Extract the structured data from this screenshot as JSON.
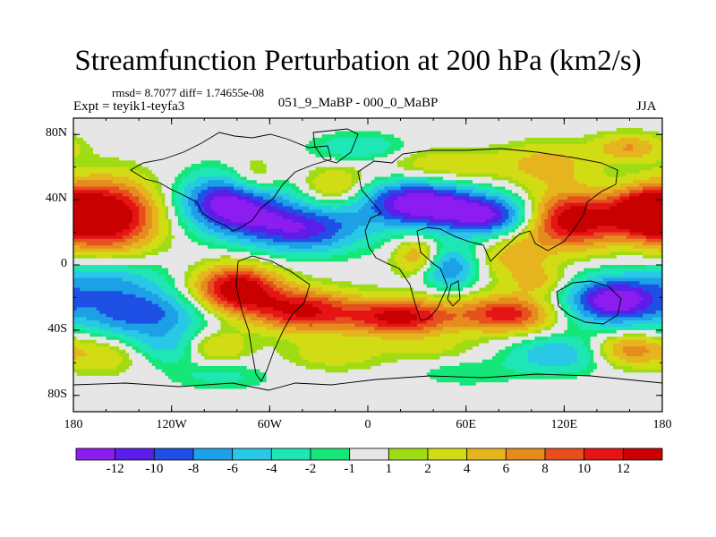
{
  "chart_data": {
    "type": "heatmap",
    "title": "Streamfunction Perturbation at 200 hPa (km2/s)",
    "stats_label": "rmsd= 8.7077 diff= 1.74655e-08",
    "left_label": "Expt = teyik1-teyfa3",
    "center_label": "051_9_MaBP - 000_0_MaBP",
    "right_label": "JJA",
    "x_axis": {
      "min": -180,
      "max": 180,
      "ticks": [
        -180,
        -120,
        -60,
        0,
        60,
        120,
        180
      ],
      "tick_labels": [
        "180",
        "120W",
        "60W",
        "0",
        "60E",
        "120E",
        "180"
      ]
    },
    "y_axis": {
      "min": -90,
      "max": 90,
      "ticks": [
        80,
        40,
        0,
        -40,
        -80
      ],
      "tick_labels": [
        "80N",
        "40N",
        "0",
        "40S",
        "80S"
      ]
    },
    "colorbar": {
      "labels": [
        "-12",
        "-10",
        "-8",
        "-6",
        "-4",
        "-2",
        "-1",
        "1",
        "2",
        "4",
        "6",
        "8",
        "10",
        "12"
      ],
      "levels": [
        -12,
        -10,
        -8,
        -6,
        -4,
        -2,
        -1,
        1,
        2,
        4,
        6,
        8,
        10,
        12
      ],
      "colors": [
        "#8c1cf0",
        "#5a1ee8",
        "#1e50e6",
        "#1ea0e6",
        "#28c8e6",
        "#1ee6b4",
        "#14e678",
        "#e6e6e6",
        "#a0dc14",
        "#d2dc14",
        "#e6b41e",
        "#e68c1e",
        "#e6501e",
        "#e61414",
        "#c80000"
      ]
    },
    "features": [
      {
        "lon": -160,
        "lat": 30,
        "amp": 16,
        "slon": 22,
        "slat": 15
      },
      {
        "lon": -70,
        "lat": 50,
        "amp": 6,
        "slon": 12,
        "slat": 10
      },
      {
        "lon": -20,
        "lat": 48,
        "amp": 5,
        "slon": 14,
        "slat": 8
      },
      {
        "lon": -82,
        "lat": 38,
        "amp": -15,
        "slon": 22,
        "slat": 12
      },
      {
        "lon": -40,
        "lat": 22,
        "amp": -11,
        "slon": 26,
        "slat": 10
      },
      {
        "lon": 30,
        "lat": 38,
        "amp": -14,
        "slon": 24,
        "slat": 10
      },
      {
        "lon": 75,
        "lat": 30,
        "amp": -12,
        "slon": 22,
        "slat": 9
      },
      {
        "lon": 45,
        "lat": 60,
        "amp": 4,
        "slon": 25,
        "slat": 8
      },
      {
        "lon": 110,
        "lat": 62,
        "amp": 5,
        "slon": 20,
        "slat": 9
      },
      {
        "lon": 160,
        "lat": 72,
        "amp": 6,
        "slon": 15,
        "slat": 6
      },
      {
        "lon": -5,
        "lat": 72,
        "amp": -4,
        "slon": 20,
        "slat": 6
      },
      {
        "lon": 125,
        "lat": 28,
        "amp": 15,
        "slon": 22,
        "slat": 12
      },
      {
        "lon": 170,
        "lat": 32,
        "amp": 14,
        "slon": 14,
        "slat": 10
      },
      {
        "lon": 90,
        "lat": 5,
        "amp": 5,
        "slon": 15,
        "slat": 10
      },
      {
        "lon": -160,
        "lat": -10,
        "amp": -6,
        "slon": 25,
        "slat": 10
      },
      {
        "lon": -140,
        "lat": -30,
        "amp": -9,
        "slon": 28,
        "slat": 10
      },
      {
        "lon": -80,
        "lat": -15,
        "amp": 15,
        "slon": 18,
        "slat": 10
      },
      {
        "lon": -40,
        "lat": -28,
        "amp": 12,
        "slon": 22,
        "slat": 9
      },
      {
        "lon": 20,
        "lat": -32,
        "amp": 13,
        "slon": 24,
        "slat": 8
      },
      {
        "lon": 85,
        "lat": -30,
        "amp": 11,
        "slon": 20,
        "slat": 8
      },
      {
        "lon": 50,
        "lat": -2,
        "amp": -8,
        "slon": 12,
        "slat": 9
      },
      {
        "lon": 30,
        "lat": 5,
        "amp": 6,
        "slon": 10,
        "slat": 8
      },
      {
        "lon": 150,
        "lat": -22,
        "amp": -14,
        "slon": 20,
        "slat": 10
      },
      {
        "lon": 105,
        "lat": -10,
        "amp": 4,
        "slon": 12,
        "slat": 6
      },
      {
        "lon": -120,
        "lat": -50,
        "amp": -5,
        "slon": 20,
        "slat": 8
      },
      {
        "lon": -160,
        "lat": -55,
        "amp": 4,
        "slon": 18,
        "slat": 8
      },
      {
        "lon": -95,
        "lat": -50,
        "amp": 6,
        "slon": 14,
        "slat": 7
      },
      {
        "lon": -20,
        "lat": -55,
        "amp": 3,
        "slon": 22,
        "slat": 7
      },
      {
        "lon": 40,
        "lat": -52,
        "amp": 2,
        "slon": 20,
        "slat": 6
      },
      {
        "lon": 115,
        "lat": -55,
        "amp": -6,
        "slon": 20,
        "slat": 8
      },
      {
        "lon": 160,
        "lat": -52,
        "amp": 7,
        "slon": 15,
        "slat": 7
      },
      {
        "lon": -90,
        "lat": -68,
        "amp": -2.5,
        "slon": 22,
        "slat": 6
      },
      {
        "lon": 60,
        "lat": -66,
        "amp": -2,
        "slon": 22,
        "slat": 6
      }
    ]
  }
}
